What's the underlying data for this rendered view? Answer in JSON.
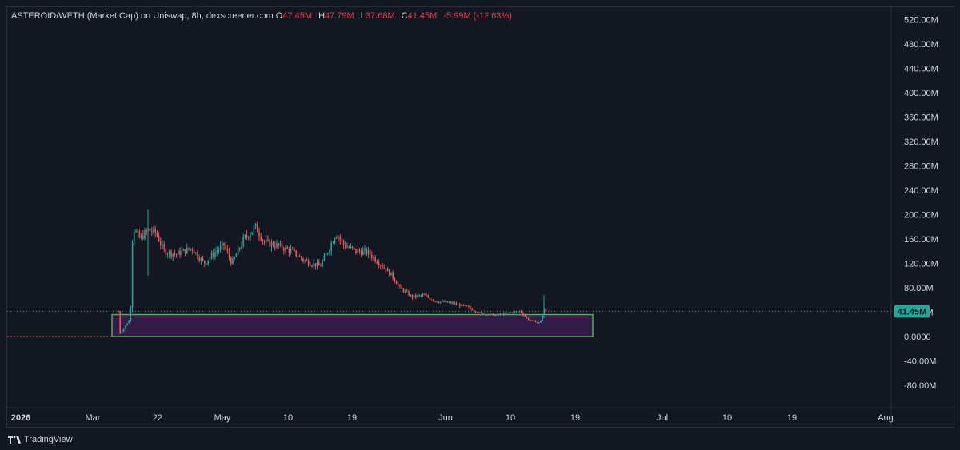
{
  "header": {
    "title": "ASTEROID/WETH (Market Cap) on Uniswap, 8h, dexscreener.com",
    "open_label": "O",
    "open": "47.45M",
    "high_label": "H",
    "high": "47.79M",
    "low_label": "L",
    "low": "37.68M",
    "close_label": "C",
    "close": "41.45M",
    "change": "-5.99M (-12.63%)"
  },
  "footer": {
    "brand": "TradingView"
  },
  "price_tag": "41.45M",
  "colors": {
    "background": "#131722",
    "up": "#26a69a",
    "down": "#ef5350",
    "zone_fill": "#3a1f4f",
    "zone_border": "#4caf50",
    "grid": "#1e222d"
  },
  "chart_data": {
    "type": "candlestick",
    "y_unit": "M",
    "ylim": [
      -100,
      540
    ],
    "y_ticks": [
      "520.00M",
      "480.00M",
      "440.00M",
      "400.00M",
      "360.00M",
      "320.00M",
      "280.00M",
      "240.00M",
      "200.00M",
      "160.00M",
      "120.00M",
      "80.00M",
      "40.00M",
      "0.0000",
      "-40.00M",
      "-80.00M"
    ],
    "y_tick_values": [
      520,
      480,
      440,
      400,
      360,
      320,
      280,
      240,
      200,
      160,
      120,
      80,
      40,
      0,
      -40,
      -80
    ],
    "x_ticks": [
      "2026",
      "Mar",
      "22",
      "May",
      "10",
      "19",
      "Jun",
      "10",
      "19",
      "Jul",
      "10",
      "19",
      "Aug"
    ],
    "bold_x_ticks": [
      "2026"
    ],
    "series_summary": [
      {
        "phase": "flat pre-launch",
        "approx_value": 0
      },
      {
        "phase": "spike",
        "approx_value": 195
      },
      {
        "phase": "range",
        "approx_value": 140
      },
      {
        "phase": "peak",
        "approx_value": 192
      },
      {
        "phase": "decline",
        "approx_value": 60
      },
      {
        "phase": "latest",
        "approx_value": 41.45
      }
    ],
    "last_close": 41.45,
    "demand_zone": {
      "y_low": 0,
      "y_high": 36
    }
  }
}
